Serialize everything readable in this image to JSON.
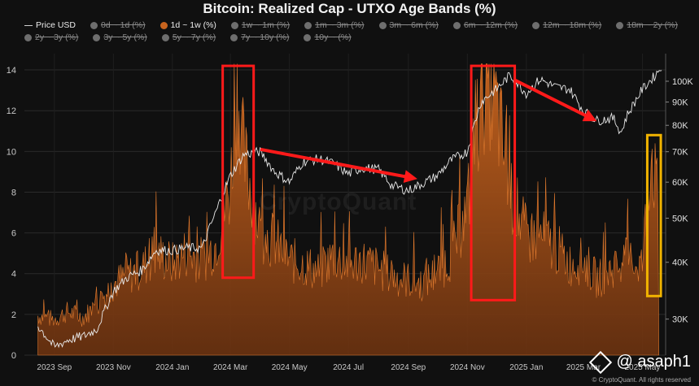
{
  "title": "Bitcoin: Realized Cap - UTXO Age Bands (%)",
  "legend": [
    {
      "label": "Price USD",
      "state": "on",
      "kind": "line"
    },
    {
      "label": "0d ~ 1d (%)",
      "state": "off",
      "kind": "dot"
    },
    {
      "label": "1d ~ 1w (%)",
      "state": "on",
      "kind": "dot"
    },
    {
      "label": "1w ~ 1m (%)",
      "state": "off",
      "kind": "dot"
    },
    {
      "label": "1m ~ 3m (%)",
      "state": "off",
      "kind": "dot"
    },
    {
      "label": "3m ~ 6m (%)",
      "state": "off",
      "kind": "dot"
    },
    {
      "label": "6m ~ 12m (%)",
      "state": "off",
      "kind": "dot"
    },
    {
      "label": "12m ~ 18m (%)",
      "state": "off",
      "kind": "dot"
    },
    {
      "label": "18m ~ 2y (%)",
      "state": "off",
      "kind": "dot"
    },
    {
      "label": "2y ~ 3y (%)",
      "state": "off",
      "kind": "dot"
    },
    {
      "label": "3y ~ 5y (%)",
      "state": "off",
      "kind": "dot"
    },
    {
      "label": "5y ~ 7y (%)",
      "state": "off",
      "kind": "dot"
    },
    {
      "label": "7y ~ 10y (%)",
      "state": "off",
      "kind": "dot"
    },
    {
      "label": "10y ~ (%)",
      "state": "off",
      "kind": "dot"
    }
  ],
  "watermark": "CryptoQuant",
  "handle": "@ asaph1",
  "credit": "© CryptoQuant. All rights reserved",
  "colors": {
    "area": "#c8641e",
    "price": "#e8e8e8",
    "red_box": "#ff1a1a",
    "yellow_box": "#f2b400",
    "arrow": "#ff1a1a"
  },
  "chart_data": {
    "type": "area",
    "x_tick_labels": [
      "2023 Sep",
      "2023 Nov",
      "2024 Jan",
      "2024 Mar",
      "2024 May",
      "2024 Jul",
      "2024 Sep",
      "2024 Nov",
      "2025 Jan",
      "2025 Mar",
      "2025 May"
    ],
    "y_left_ticks": [
      0,
      2,
      4,
      6,
      8,
      10,
      12,
      14
    ],
    "y_right_ticks": [
      "30K",
      "40K",
      "50K",
      "60K",
      "70K",
      "80K",
      "90K",
      "100K"
    ],
    "y_right_values": [
      30000,
      40000,
      50000,
      60000,
      70000,
      80000,
      90000,
      100000
    ],
    "ylim": [
      0,
      14.8
    ],
    "price_scale": "log",
    "price_lim": [
      25000,
      115000
    ],
    "grid": true,
    "legend_position": "top",
    "series": [
      {
        "name": "1d ~ 1w (%)",
        "axis": "left",
        "x": [
          "2023-08-15",
          "2023-09-01",
          "2023-09-15",
          "2023-10-01",
          "2023-10-15",
          "2023-11-01",
          "2023-11-15",
          "2023-12-01",
          "2023-12-15",
          "2024-01-01",
          "2024-01-15",
          "2024-02-01",
          "2024-02-15",
          "2024-03-01",
          "2024-03-08",
          "2024-03-15",
          "2024-04-01",
          "2024-04-15",
          "2024-05-01",
          "2024-05-15",
          "2024-06-01",
          "2024-06-15",
          "2024-07-01",
          "2024-07-15",
          "2024-08-01",
          "2024-08-15",
          "2024-09-01",
          "2024-09-15",
          "2024-10-01",
          "2024-10-15",
          "2024-11-01",
          "2024-11-15",
          "2024-11-22",
          "2024-12-01",
          "2024-12-15",
          "2025-01-01",
          "2025-01-15",
          "2025-02-01",
          "2025-02-15",
          "2025-03-01",
          "2025-03-15",
          "2025-04-01",
          "2025-04-15",
          "2025-05-01",
          "2025-05-10",
          "2025-05-18"
        ],
        "values": [
          2.0,
          1.8,
          2.2,
          1.9,
          2.6,
          3.6,
          4.0,
          4.4,
          5.2,
          4.6,
          5.2,
          4.8,
          5.6,
          8.5,
          13.8,
          10.0,
          6.2,
          5.8,
          4.8,
          4.6,
          4.2,
          5.0,
          4.6,
          4.8,
          4.4,
          4.0,
          3.8,
          3.6,
          4.2,
          5.0,
          7.5,
          13.0,
          14.2,
          12.5,
          8.5,
          6.0,
          6.0,
          5.4,
          4.6,
          4.8,
          3.8,
          4.4,
          4.8,
          4.6,
          10.6,
          7.2
        ]
      },
      {
        "name": "Price USD",
        "axis": "right",
        "x": [
          "2023-08-15",
          "2023-09-01",
          "2023-09-15",
          "2023-10-01",
          "2023-10-15",
          "2023-11-01",
          "2023-11-15",
          "2023-12-01",
          "2023-12-15",
          "2024-01-01",
          "2024-01-15",
          "2024-02-01",
          "2024-02-15",
          "2024-03-01",
          "2024-03-15",
          "2024-04-01",
          "2024-04-15",
          "2024-05-01",
          "2024-05-15",
          "2024-06-01",
          "2024-06-15",
          "2024-07-01",
          "2024-07-15",
          "2024-08-01",
          "2024-08-15",
          "2024-09-01",
          "2024-09-15",
          "2024-10-01",
          "2024-10-15",
          "2024-11-01",
          "2024-11-15",
          "2024-12-01",
          "2024-12-15",
          "2025-01-01",
          "2025-01-15",
          "2025-02-01",
          "2025-02-15",
          "2025-03-01",
          "2025-03-15",
          "2025-04-01",
          "2025-04-09",
          "2025-04-15",
          "2025-05-01",
          "2025-05-15",
          "2025-05-22"
        ],
        "values": [
          29000,
          26000,
          27000,
          27500,
          28500,
          34500,
          37000,
          38500,
          42500,
          42500,
          43000,
          43000,
          51500,
          62000,
          69000,
          70000,
          63500,
          60000,
          66500,
          67500,
          66000,
          62500,
          64500,
          64000,
          59000,
          57500,
          59500,
          62000,
          67000,
          70000,
          90000,
          96000,
          103000,
          94000,
          101000,
          97000,
          96000,
          86000,
          82000,
          83000,
          77000,
          84000,
          96000,
          103500,
          109000
        ]
      }
    ],
    "annotations": [
      {
        "type": "rect",
        "color": "red",
        "x_start": "2024-02-22",
        "x_end": "2024-03-25",
        "y_range": [
          3.8,
          14.2
        ]
      },
      {
        "type": "rect",
        "color": "red",
        "x_start": "2024-11-05",
        "x_end": "2024-12-20",
        "y_range": [
          2.7,
          14.2
        ]
      },
      {
        "type": "rect",
        "color": "yellow",
        "x_start": "2025-05-06",
        "x_end": "2025-05-20",
        "y_range": [
          2.9,
          10.8
        ]
      },
      {
        "type": "arrow",
        "color": "red",
        "from": [
          "2024-04-01",
          10.1
        ],
        "to": [
          "2024-09-05",
          8.7
        ]
      },
      {
        "type": "arrow",
        "color": "red",
        "from": [
          "2024-12-20",
          13.5
        ],
        "to": [
          "2025-03-10",
          11.6
        ]
      }
    ]
  }
}
